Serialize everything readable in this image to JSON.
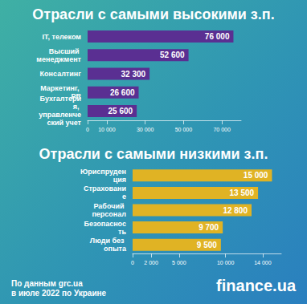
{
  "chart_data": [
    {
      "type": "bar",
      "orientation": "horizontal",
      "title": "Отрасли с самыми высокими з.п.",
      "categories": [
        "IT, телеком",
        "Высший менеджмент",
        "Консалтинг",
        "Маркетинг, PR",
        "Бухгалтерия, управленческий учет"
      ],
      "values": [
        76000,
        52600,
        32300,
        26600,
        25600
      ],
      "value_labels": [
        "76 000",
        "52 600",
        "32 300",
        "26 600",
        "25 600"
      ],
      "color": "#5a2f92",
      "xlim": [
        0,
        80000
      ],
      "xticks": [
        0,
        {
          "value": 10000,
          "label": "10 000"
        },
        {
          "value": 30000,
          "label": "30 000"
        },
        {
          "value": 50000,
          "label": "50 000"
        },
        {
          "value": 70000,
          "label": "70 000"
        }
      ],
      "data_labels": true,
      "grid": false
    },
    {
      "type": "bar",
      "orientation": "horizontal",
      "title": "Отрасли с самыми низкими з.п.",
      "categories": [
        "Юриспруденция",
        "Страхование",
        "Рабочий персонал",
        "Безопасность",
        "Люди без опыта"
      ],
      "values": [
        15000,
        13500,
        12800,
        9700,
        9500
      ],
      "value_labels": [
        "15 000",
        "13 500",
        "12 800",
        "9 700",
        "9 500"
      ],
      "color": "#e0b324",
      "xlim": [
        0,
        16000
      ],
      "xticks": [
        0,
        {
          "value": 2000,
          "label": "2 000"
        },
        {
          "value": 5000,
          "label": "5 000"
        },
        {
          "value": 10000,
          "label": "10 000"
        },
        {
          "value": 14000,
          "label": "14 000"
        }
      ],
      "data_labels": true,
      "grid": false
    }
  ],
  "footer": {
    "source": [
      "По данным grc.ua",
      "в июле 2022 по Украине"
    ],
    "brand": "finance.ua"
  }
}
